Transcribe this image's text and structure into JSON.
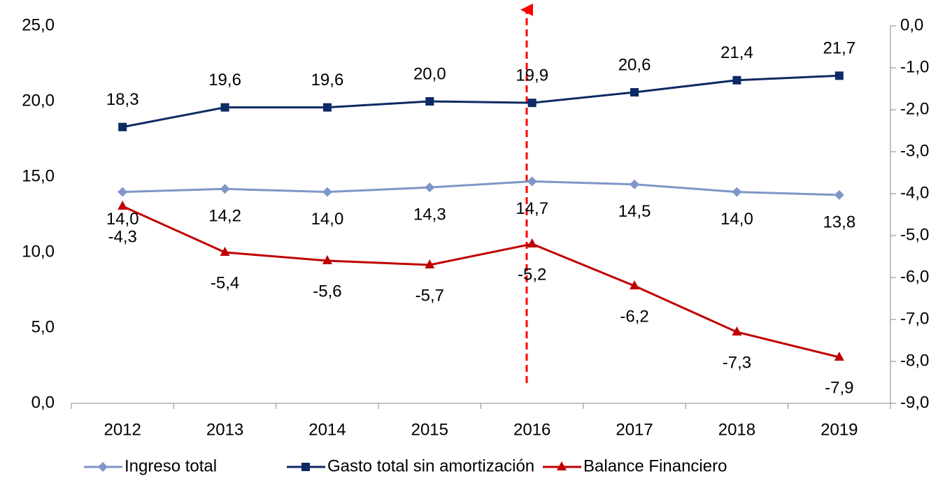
{
  "chart_data": {
    "type": "line",
    "categories": [
      "2012",
      "2013",
      "2014",
      "2015",
      "2016",
      "2017",
      "2018",
      "2019"
    ],
    "series": [
      {
        "name": "Ingreso total",
        "color": "#7f96c8",
        "marker": "diamond",
        "values": [
          14.0,
          14.2,
          14.0,
          14.3,
          14.7,
          14.5,
          14.0,
          13.8
        ],
        "value_labels": [
          "14,0",
          "14,2",
          "14,0",
          "14,3",
          "14,7",
          "14,5",
          "14,0",
          "13,8"
        ]
      },
      {
        "name": "Gasto total sin amortización",
        "color": "#0c2a63",
        "marker": "square",
        "values": [
          18.3,
          19.6,
          19.6,
          20.0,
          19.9,
          20.6,
          21.4,
          21.7
        ],
        "value_labels": [
          "18,3",
          "19,6",
          "19,6",
          "20,0",
          "19,9",
          "20,6",
          "21,4",
          "21,7"
        ]
      },
      {
        "name": "Balance Financiero",
        "color": "#c00000",
        "marker": "triangle",
        "axis": "y2",
        "values": [
          -4.3,
          -5.4,
          -5.6,
          -5.7,
          -5.2,
          -6.2,
          -7.3,
          -7.9
        ],
        "value_labels": [
          "-4,3",
          "-5,4",
          "-5,6",
          "-5,7",
          "-5,2",
          "-6,2",
          "-7,3",
          "-7,9"
        ]
      }
    ],
    "ylim": [
      0,
      25
    ],
    "yticks": [
      {
        "value": 0,
        "label": "0,0"
      },
      {
        "value": 5,
        "label": "5,0"
      },
      {
        "value": 10,
        "label": "10,0"
      },
      {
        "value": 15,
        "label": "15,0"
      },
      {
        "value": 20,
        "label": "20,0"
      },
      {
        "value": 25,
        "label": "25,0"
      }
    ],
    "y2lim": [
      -9,
      0
    ],
    "y2ticks": [
      {
        "value": -9,
        "label": "-9,0"
      },
      {
        "value": -8,
        "label": "-8,0"
      },
      {
        "value": -7,
        "label": "-7,0"
      },
      {
        "value": -6,
        "label": "-6,0"
      },
      {
        "value": -5,
        "label": "-5,0"
      },
      {
        "value": -4,
        "label": "-4,0"
      },
      {
        "value": -3,
        "label": "-3,0"
      },
      {
        "value": -2,
        "label": "-2,0"
      },
      {
        "value": -1,
        "label": "-1,0"
      },
      {
        "value": 0,
        "label": "0,0"
      }
    ],
    "legend": "bottom",
    "grid": false
  }
}
